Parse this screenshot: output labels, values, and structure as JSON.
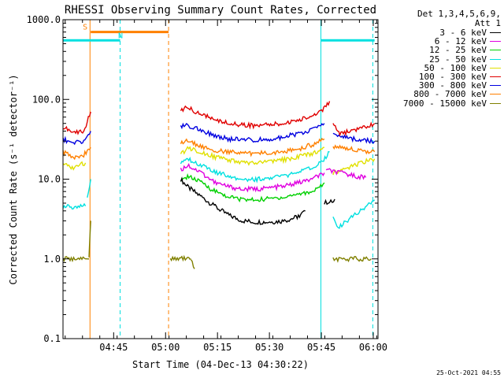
{
  "chart_data": {
    "type": "line",
    "title": "RHESSI Observing Summary Count Rates, Corrected",
    "xlabel": "Start Time (04-Dec-13 04:30:22)",
    "ylabel": "Corrected Count Rate (s⁻¹ detector⁻¹)",
    "y_scale": "log",
    "ylim": [
      0.1,
      1000
    ],
    "x_axis_unit": "minutes after 04:30:22",
    "xlim": [
      0,
      91
    ],
    "x_ticks": [
      {
        "t": 14.63,
        "label": "04:45"
      },
      {
        "t": 29.63,
        "label": "05:00"
      },
      {
        "t": 44.63,
        "label": "05:15"
      },
      {
        "t": 59.63,
        "label": "05:30"
      },
      {
        "t": 74.63,
        "label": "05:45"
      },
      {
        "t": 89.63,
        "label": "06:00"
      }
    ],
    "y_ticks": [
      {
        "v": 0.1,
        "label": "0.1"
      },
      {
        "v": 1,
        "label": "1.0"
      },
      {
        "v": 10,
        "label": "10.0"
      },
      {
        "v": 100,
        "label": "100.0"
      },
      {
        "v": 1000,
        "label": "1000.0"
      }
    ],
    "legend_header": [
      "Det 1,3,4,5,6,9,",
      "Att 1"
    ],
    "series": [
      {
        "name": "3 - 6 keV",
        "color": "#000000",
        "segments": [
          {
            "t": [
              34,
              36,
              40,
              44,
              48,
              52,
              56,
              60,
              64,
              68,
              70
            ],
            "v": [
              10,
              8,
              6,
              4.5,
              3.5,
              3,
              2.9,
              2.9,
              3,
              3.4,
              4
            ]
          },
          {
            "t": [
              75.5,
              77,
              78.5
            ],
            "v": [
              5,
              5.3,
              5.6
            ]
          }
        ]
      },
      {
        "name": "6 - 12 keV",
        "color": "#e000e0",
        "segments": [
          {
            "t": [
              34,
              36,
              40,
              44,
              48,
              52,
              56,
              60,
              64,
              68,
              72,
              75.5
            ],
            "v": [
              13,
              15,
              12,
              9,
              8,
              7.5,
              7.5,
              7.8,
              8.2,
              9,
              10,
              12
            ]
          },
          {
            "t": [
              76,
              80,
              84,
              87.5
            ],
            "v": [
              13,
              12,
              11,
              10.5
            ]
          }
        ]
      },
      {
        "name": "12 - 25 keV",
        "color": "#00d000",
        "segments": [
          {
            "t": [
              34,
              36,
              40,
              44,
              48,
              52,
              56,
              60,
              64,
              68,
              72,
              75.5
            ],
            "v": [
              9,
              11,
              9,
              7,
              6,
              5.5,
              5.5,
              5.7,
              6,
              6.5,
              7,
              9
            ]
          }
        ]
      },
      {
        "name": "25 - 50 keV",
        "color": "#00e0e0",
        "segments": [
          {
            "t": [
              0,
              3,
              6.5
            ],
            "v": [
              4.5,
              4.5,
              4.6
            ]
          },
          {
            "t": [
              7,
              8
            ],
            "v": [
              6,
              10
            ]
          },
          {
            "t": [
              34,
              36,
              40,
              44,
              48,
              52,
              56,
              60,
              64,
              68,
              72,
              75,
              77
            ],
            "v": [
              16,
              18,
              15,
              12,
              11,
              10,
              10,
              10.3,
              11,
              12,
              14,
              17,
              22
            ]
          },
          {
            "t": [
              78,
              79.5,
              84,
              90
            ],
            "v": [
              3.5,
              2.5,
              3.5,
              5.5
            ]
          }
        ]
      },
      {
        "name": "50 - 100 keV",
        "color": "#e0e000",
        "segments": [
          {
            "t": [
              0,
              3,
              6.5
            ],
            "v": [
              15,
              14,
              16
            ]
          },
          {
            "t": [
              34,
              36,
              40,
              44,
              48,
              52,
              56,
              60,
              64,
              68,
              72,
              75.5
            ],
            "v": [
              20,
              25,
              22,
              19,
              17,
              16,
              16,
              16.5,
              17.5,
              19,
              21,
              25
            ]
          },
          {
            "t": [
              78,
              82,
              86,
              90
            ],
            "v": [
              12,
              14,
              16,
              18
            ]
          }
        ]
      },
      {
        "name": "100 - 300 keV",
        "color": "#e00000",
        "segments": [
          {
            "t": [
              0,
              3,
              6,
              8
            ],
            "v": [
              45,
              38,
              40,
              70
            ]
          },
          {
            "t": [
              34,
              36,
              40,
              44,
              48,
              52,
              56,
              60,
              64,
              68,
              72,
              75,
              77
            ],
            "v": [
              75,
              78,
              65,
              55,
              50,
              48,
              47,
              48,
              50,
              55,
              62,
              75,
              95
            ]
          },
          {
            "t": [
              78,
              80,
              84,
              88,
              90
            ],
            "v": [
              50,
              38,
              40,
              45,
              50
            ]
          }
        ]
      },
      {
        "name": "300 - 800 keV",
        "color": "#0000e0",
        "segments": [
          {
            "t": [
              0,
              3,
              6,
              8
            ],
            "v": [
              32,
              28,
              30,
              40
            ]
          },
          {
            "t": [
              34,
              36,
              40,
              44,
              48,
              52,
              56,
              60,
              64,
              68,
              72,
              75.5
            ],
            "v": [
              45,
              48,
              40,
              35,
              32,
              31,
              31,
              32,
              34,
              37,
              42,
              50
            ]
          },
          {
            "t": [
              78,
              82,
              86,
              90
            ],
            "v": [
              36,
              33,
              31,
              30
            ]
          }
        ]
      },
      {
        "name": "800 - 7000 keV",
        "color": "#ff8000",
        "segments": [
          {
            "t": [
              0,
              3,
              6,
              8
            ],
            "v": [
              22,
              19,
              20,
              25
            ]
          },
          {
            "t": [
              34,
              36,
              40,
              44,
              48,
              52,
              56,
              60,
              64,
              68,
              72,
              75.5
            ],
            "v": [
              28,
              30,
              26,
              23,
              22,
              21,
              21,
              21.5,
              22.5,
              24,
              27,
              32
            ]
          },
          {
            "t": [
              78,
              82,
              86,
              90
            ],
            "v": [
              26,
              24,
              23,
              22
            ]
          }
        ]
      },
      {
        "name": "7000 - 15000 keV",
        "color": "#808000",
        "segments": [
          {
            "t": [
              0,
              7.5
            ],
            "v": [
              1,
              1
            ]
          },
          {
            "t": [
              7.5,
              8
            ],
            "v": [
              1,
              3
            ]
          },
          {
            "t": [
              31,
              35,
              37
            ],
            "v": [
              1,
              1,
              1
            ]
          },
          {
            "t": [
              37,
              38
            ],
            "v": [
              1,
              0.75
            ]
          },
          {
            "t": [
              78,
              89
            ],
            "v": [
              1,
              1
            ]
          }
        ]
      }
    ],
    "flags": [
      {
        "label": "S",
        "color": "#ff8000",
        "t": [
          8,
          30.5
        ],
        "level": 700
      },
      {
        "label": "N",
        "color": "#00e0e0",
        "t": [
          0,
          16.5
        ],
        "level": 550
      },
      {
        "label": "",
        "color": "#00e0e0",
        "t": [
          74.5,
          90
        ],
        "level": 550
      }
    ],
    "vertical_lines": [
      {
        "t": 0,
        "color": "#00e0e0",
        "style": "solid"
      },
      {
        "t": 7.8,
        "color": "#ff8000",
        "style": "solid"
      },
      {
        "t": 16.5,
        "color": "#00e0e0",
        "style": "dashed"
      },
      {
        "t": 30.5,
        "color": "#ff8000",
        "style": "dashed"
      },
      {
        "t": 74.5,
        "color": "#00e0e0",
        "style": "solid"
      },
      {
        "t": 89.5,
        "color": "#00e0e0",
        "style": "dashed"
      }
    ]
  },
  "footer_timestamp": "25-Oct-2021 04:55"
}
